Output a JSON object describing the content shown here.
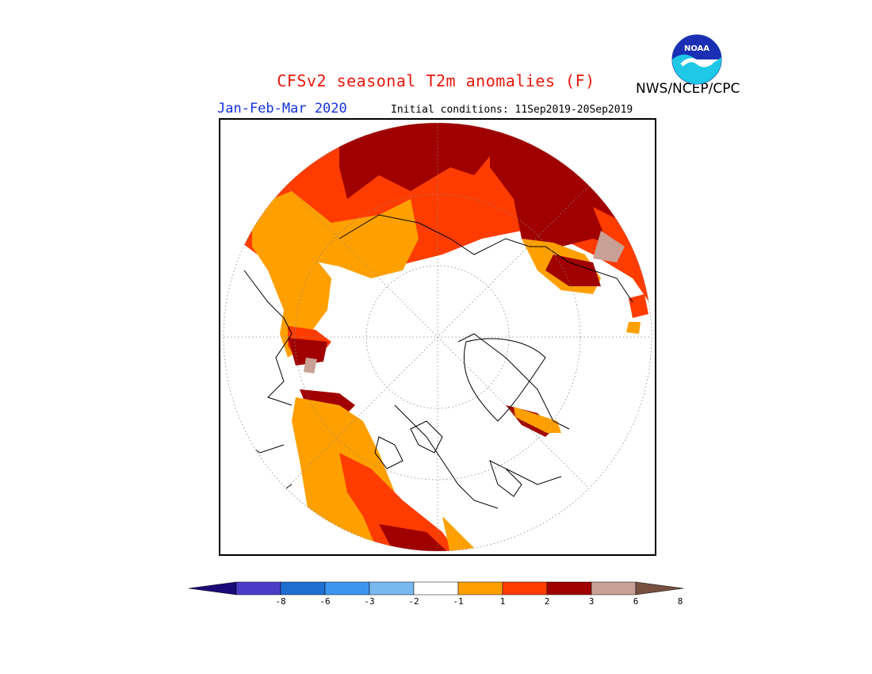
{
  "header": {
    "title": "CFSv2 seasonal T2m anomalies (F)",
    "season": "Jan-Feb-Mar 2020",
    "initial_conditions": "Initial conditions: 11Sep2019-20Sep2019",
    "agency": "NWS/NCEP/CPC",
    "logo_text": "NOAA"
  },
  "colorbar": {
    "labels": [
      "-8",
      "-6",
      "-3",
      "-2",
      "-1",
      "1",
      "2",
      "3",
      "6",
      "8"
    ],
    "colors": {
      "below_min": "#1a0a78",
      "neg_8_6": "#4b3cc8",
      "neg_6_3": "#1e6ed2",
      "neg_3_2": "#3c96f0",
      "neg_2_1": "#78b9f0",
      "neutral": "#ffffff",
      "pos_1_2": "#ffa000",
      "pos_2_3": "#ff3c00",
      "pos_3_6": "#a00000",
      "pos_6_8": "#c8a096",
      "above_max": "#785040"
    }
  },
  "map": {
    "projection": "north-polar-stereographic",
    "regions": [
      {
        "name": "northern-asia",
        "anomaly_class": "3 to 6"
      },
      {
        "name": "northeast-siberia",
        "anomaly_class": "3 to 6"
      },
      {
        "name": "eastern-europe",
        "anomaly_class": "2 to 3"
      },
      {
        "name": "central-asia",
        "anomaly_class": "1 to 2"
      },
      {
        "name": "canada-east",
        "anomaly_class": "1 to 2"
      },
      {
        "name": "alaska",
        "anomaly_class": "2 to 3"
      },
      {
        "name": "greenland-west",
        "anomaly_class": "1 to 2"
      },
      {
        "name": "arctic-ocean",
        "anomaly_class": "-1 to 1"
      }
    ]
  }
}
